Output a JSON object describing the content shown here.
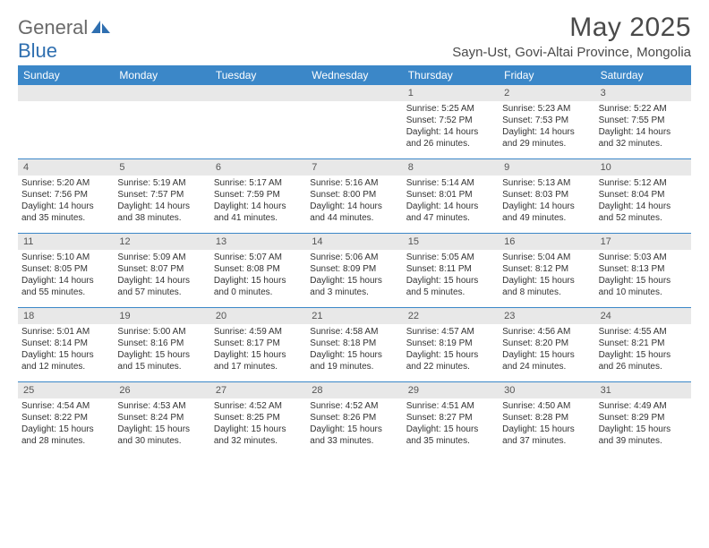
{
  "logo": {
    "text1": "General",
    "text2": "Blue"
  },
  "title": "May 2025",
  "subtitle": "Sayn-Ust, Govi-Altai Province, Mongolia",
  "header_bg": "#3b87c8",
  "daynum_bg": "#e8e8e8",
  "border_color": "#3b87c8",
  "dayNames": [
    "Sunday",
    "Monday",
    "Tuesday",
    "Wednesday",
    "Thursday",
    "Friday",
    "Saturday"
  ],
  "weeks": [
    [
      null,
      null,
      null,
      null,
      {
        "n": "1",
        "sr": "5:25 AM",
        "ss": "7:52 PM",
        "dl": "14 hours and 26 minutes."
      },
      {
        "n": "2",
        "sr": "5:23 AM",
        "ss": "7:53 PM",
        "dl": "14 hours and 29 minutes."
      },
      {
        "n": "3",
        "sr": "5:22 AM",
        "ss": "7:55 PM",
        "dl": "14 hours and 32 minutes."
      }
    ],
    [
      {
        "n": "4",
        "sr": "5:20 AM",
        "ss": "7:56 PM",
        "dl": "14 hours and 35 minutes."
      },
      {
        "n": "5",
        "sr": "5:19 AM",
        "ss": "7:57 PM",
        "dl": "14 hours and 38 minutes."
      },
      {
        "n": "6",
        "sr": "5:17 AM",
        "ss": "7:59 PM",
        "dl": "14 hours and 41 minutes."
      },
      {
        "n": "7",
        "sr": "5:16 AM",
        "ss": "8:00 PM",
        "dl": "14 hours and 44 minutes."
      },
      {
        "n": "8",
        "sr": "5:14 AM",
        "ss": "8:01 PM",
        "dl": "14 hours and 47 minutes."
      },
      {
        "n": "9",
        "sr": "5:13 AM",
        "ss": "8:03 PM",
        "dl": "14 hours and 49 minutes."
      },
      {
        "n": "10",
        "sr": "5:12 AM",
        "ss": "8:04 PM",
        "dl": "14 hours and 52 minutes."
      }
    ],
    [
      {
        "n": "11",
        "sr": "5:10 AM",
        "ss": "8:05 PM",
        "dl": "14 hours and 55 minutes."
      },
      {
        "n": "12",
        "sr": "5:09 AM",
        "ss": "8:07 PM",
        "dl": "14 hours and 57 minutes."
      },
      {
        "n": "13",
        "sr": "5:07 AM",
        "ss": "8:08 PM",
        "dl": "15 hours and 0 minutes."
      },
      {
        "n": "14",
        "sr": "5:06 AM",
        "ss": "8:09 PM",
        "dl": "15 hours and 3 minutes."
      },
      {
        "n": "15",
        "sr": "5:05 AM",
        "ss": "8:11 PM",
        "dl": "15 hours and 5 minutes."
      },
      {
        "n": "16",
        "sr": "5:04 AM",
        "ss": "8:12 PM",
        "dl": "15 hours and 8 minutes."
      },
      {
        "n": "17",
        "sr": "5:03 AM",
        "ss": "8:13 PM",
        "dl": "15 hours and 10 minutes."
      }
    ],
    [
      {
        "n": "18",
        "sr": "5:01 AM",
        "ss": "8:14 PM",
        "dl": "15 hours and 12 minutes."
      },
      {
        "n": "19",
        "sr": "5:00 AM",
        "ss": "8:16 PM",
        "dl": "15 hours and 15 minutes."
      },
      {
        "n": "20",
        "sr": "4:59 AM",
        "ss": "8:17 PM",
        "dl": "15 hours and 17 minutes."
      },
      {
        "n": "21",
        "sr": "4:58 AM",
        "ss": "8:18 PM",
        "dl": "15 hours and 19 minutes."
      },
      {
        "n": "22",
        "sr": "4:57 AM",
        "ss": "8:19 PM",
        "dl": "15 hours and 22 minutes."
      },
      {
        "n": "23",
        "sr": "4:56 AM",
        "ss": "8:20 PM",
        "dl": "15 hours and 24 minutes."
      },
      {
        "n": "24",
        "sr": "4:55 AM",
        "ss": "8:21 PM",
        "dl": "15 hours and 26 minutes."
      }
    ],
    [
      {
        "n": "25",
        "sr": "4:54 AM",
        "ss": "8:22 PM",
        "dl": "15 hours and 28 minutes."
      },
      {
        "n": "26",
        "sr": "4:53 AM",
        "ss": "8:24 PM",
        "dl": "15 hours and 30 minutes."
      },
      {
        "n": "27",
        "sr": "4:52 AM",
        "ss": "8:25 PM",
        "dl": "15 hours and 32 minutes."
      },
      {
        "n": "28",
        "sr": "4:52 AM",
        "ss": "8:26 PM",
        "dl": "15 hours and 33 minutes."
      },
      {
        "n": "29",
        "sr": "4:51 AM",
        "ss": "8:27 PM",
        "dl": "15 hours and 35 minutes."
      },
      {
        "n": "30",
        "sr": "4:50 AM",
        "ss": "8:28 PM",
        "dl": "15 hours and 37 minutes."
      },
      {
        "n": "31",
        "sr": "4:49 AM",
        "ss": "8:29 PM",
        "dl": "15 hours and 39 minutes."
      }
    ]
  ],
  "labels": {
    "sunrise": "Sunrise: ",
    "sunset": "Sunset: ",
    "daylight": "Daylight: "
  }
}
